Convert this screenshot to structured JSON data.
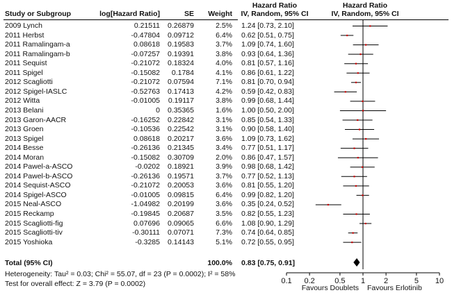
{
  "headers": {
    "study": "Study or Subgroup",
    "loghr": "log[Hazard Ratio]",
    "se": "SE",
    "weight": "Weight",
    "hr_title_left": "Hazard Ratio",
    "hr_method_left": "IV, Random, 95% CI",
    "hr_title_right": "Hazard Ratio",
    "hr_method_right": "IV, Random, 95% CI"
  },
  "studies": [
    {
      "name": "2009 Lynch",
      "loghr": "0.21511",
      "se": "0.26879",
      "weight": "2.5%",
      "ci_text": "1.24 [0.73, 2.10]"
    },
    {
      "name": "2011 Herbst",
      "loghr": "-0.47804",
      "se": "0.09712",
      "weight": "6.4%",
      "ci_text": "0.62 [0.51, 0.75]"
    },
    {
      "name": "2011 Ramalingam-a",
      "loghr": "0.08618",
      "se": "0.19583",
      "weight": "3.7%",
      "ci_text": "1.09 [0.74, 1.60]"
    },
    {
      "name": "2011 Ramalingam-b",
      "loghr": "-0.07257",
      "se": "0.19391",
      "weight": "3.8%",
      "ci_text": "0.93 [0.64, 1.36]"
    },
    {
      "name": "2011 Sequist",
      "loghr": "-0.21072",
      "se": "0.18324",
      "weight": "4.0%",
      "ci_text": "0.81 [0.57, 1.16]"
    },
    {
      "name": "2011 Spigel",
      "loghr": "-0.15082",
      "se": "0.1784",
      "weight": "4.1%",
      "ci_text": "0.86 [0.61, 1.22]"
    },
    {
      "name": "2012 Scagliotti",
      "loghr": "-0.21072",
      "se": "0.07594",
      "weight": "7.1%",
      "ci_text": "0.81 [0.70, 0.94]"
    },
    {
      "name": "2012 Spigel-IASLC",
      "loghr": "-0.52763",
      "se": "0.17413",
      "weight": "4.2%",
      "ci_text": "0.59 [0.42, 0.83]"
    },
    {
      "name": "2012 Witta",
      "loghr": "-0.01005",
      "se": "0.19117",
      "weight": "3.8%",
      "ci_text": "0.99 [0.68, 1.44]"
    },
    {
      "name": "2013 Belani",
      "loghr": "0",
      "se": "0.35365",
      "weight": "1.6%",
      "ci_text": "1.00 [0.50, 2.00]"
    },
    {
      "name": "2013 Garon-AACR",
      "loghr": "-0.16252",
      "se": "0.22842",
      "weight": "3.1%",
      "ci_text": "0.85 [0.54, 1.33]"
    },
    {
      "name": "2013 Groen",
      "loghr": "-0.10536",
      "se": "0.22542",
      "weight": "3.1%",
      "ci_text": "0.90 [0.58, 1.40]"
    },
    {
      "name": "2013 Spigel",
      "loghr": "0.08618",
      "se": "0.20217",
      "weight": "3.6%",
      "ci_text": "1.09 [0.73, 1.62]"
    },
    {
      "name": "2014 Besse",
      "loghr": "-0.26136",
      "se": "0.21345",
      "weight": "3.4%",
      "ci_text": "0.77 [0.51, 1.17]"
    },
    {
      "name": "2014 Moran",
      "loghr": "-0.15082",
      "se": "0.30709",
      "weight": "2.0%",
      "ci_text": "0.86 [0.47, 1.57]"
    },
    {
      "name": "2014 Pawel-a-ASCO",
      "loghr": "-0.0202",
      "se": "0.18921",
      "weight": "3.9%",
      "ci_text": "0.98 [0.68, 1.42]"
    },
    {
      "name": "2014 Pawel-b-ASCO",
      "loghr": "-0.26136",
      "se": "0.19571",
      "weight": "3.7%",
      "ci_text": "0.77 [0.52, 1.13]"
    },
    {
      "name": "2014 Sequist-ASCO",
      "loghr": "-0.21072",
      "se": "0.20053",
      "weight": "3.6%",
      "ci_text": "0.81 [0.55, 1.20]"
    },
    {
      "name": "2014 Spigel-ASCO",
      "loghr": "-0.01005",
      "se": "0.09815",
      "weight": "6.4%",
      "ci_text": "0.99 [0.82, 1.20]"
    },
    {
      "name": "2015 Neal-ASCO",
      "loghr": "-1.04982",
      "se": "0.20199",
      "weight": "3.6%",
      "ci_text": "0.35 [0.24, 0.52]"
    },
    {
      "name": "2015 Reckamp",
      "loghr": "-0.19845",
      "se": "0.20687",
      "weight": "3.5%",
      "ci_text": "0.82 [0.55, 1.23]"
    },
    {
      "name": "2015 Scagliotti-fig",
      "loghr": "0.07696",
      "se": "0.09065",
      "weight": "6.6%",
      "ci_text": "1.08 [0.90, 1.29]"
    },
    {
      "name": "2015 Scagliotti-tiv",
      "loghr": "-0.30111",
      "se": "0.07071",
      "weight": "7.3%",
      "ci_text": "0.74 [0.64, 0.85]"
    },
    {
      "name": "2015 Yoshioka",
      "loghr": "-0.3285",
      "se": "0.14143",
      "weight": "5.1%",
      "ci_text": "0.72 [0.55, 0.95]"
    }
  ],
  "total": {
    "label": "Total (95% CI)",
    "weight": "100.0%",
    "ci_text": "0.83 [0.75, 0.91]"
  },
  "heterogeneity": "Heterogeneity: Tau² = 0.03; Chi² = 55.07, df = 23 (P = 0.0002); I² = 58%",
  "overall_effect": "Test for overall effect: Z = 3.79 (P = 0.0002)",
  "axis": {
    "tick_labels": [
      "0.1",
      "0.2",
      "0.5",
      "1",
      "2",
      "5",
      "10"
    ],
    "favours_left": "Favours Doublets",
    "favours_right": "Favours Erlotinib"
  },
  "colors": {
    "marker": "#cc0000",
    "line": "#000000"
  },
  "chart_data": {
    "type": "forest",
    "title": "Hazard Ratio IV, Random, 95% CI",
    "xscale": "log",
    "xlim": [
      0.1,
      10
    ],
    "xticks": [
      0.1,
      0.2,
      0.5,
      1,
      2,
      5,
      10
    ],
    "xlabel_left": "Favours Doublets",
    "xlabel_right": "Favours Erlotinib",
    "rows": [
      {
        "study": "2009 Lynch",
        "hr": 1.24,
        "lo": 0.73,
        "hi": 2.1,
        "weight": 2.5
      },
      {
        "study": "2011 Herbst",
        "hr": 0.62,
        "lo": 0.51,
        "hi": 0.75,
        "weight": 6.4
      },
      {
        "study": "2011 Ramalingam-a",
        "hr": 1.09,
        "lo": 0.74,
        "hi": 1.6,
        "weight": 3.7
      },
      {
        "study": "2011 Ramalingam-b",
        "hr": 0.93,
        "lo": 0.64,
        "hi": 1.36,
        "weight": 3.8
      },
      {
        "study": "2011 Sequist",
        "hr": 0.81,
        "lo": 0.57,
        "hi": 1.16,
        "weight": 4.0
      },
      {
        "study": "2011 Spigel",
        "hr": 0.86,
        "lo": 0.61,
        "hi": 1.22,
        "weight": 4.1
      },
      {
        "study": "2012 Scagliotti",
        "hr": 0.81,
        "lo": 0.7,
        "hi": 0.94,
        "weight": 7.1
      },
      {
        "study": "2012 Spigel-IASLC",
        "hr": 0.59,
        "lo": 0.42,
        "hi": 0.83,
        "weight": 4.2
      },
      {
        "study": "2012 Witta",
        "hr": 0.99,
        "lo": 0.68,
        "hi": 1.44,
        "weight": 3.8
      },
      {
        "study": "2013 Belani",
        "hr": 1.0,
        "lo": 0.5,
        "hi": 2.0,
        "weight": 1.6
      },
      {
        "study": "2013 Garon-AACR",
        "hr": 0.85,
        "lo": 0.54,
        "hi": 1.33,
        "weight": 3.1
      },
      {
        "study": "2013 Groen",
        "hr": 0.9,
        "lo": 0.58,
        "hi": 1.4,
        "weight": 3.1
      },
      {
        "study": "2013 Spigel",
        "hr": 1.09,
        "lo": 0.73,
        "hi": 1.62,
        "weight": 3.6
      },
      {
        "study": "2014 Besse",
        "hr": 0.77,
        "lo": 0.51,
        "hi": 1.17,
        "weight": 3.4
      },
      {
        "study": "2014 Moran",
        "hr": 0.86,
        "lo": 0.47,
        "hi": 1.57,
        "weight": 2.0
      },
      {
        "study": "2014 Pawel-a-ASCO",
        "hr": 0.98,
        "lo": 0.68,
        "hi": 1.42,
        "weight": 3.9
      },
      {
        "study": "2014 Pawel-b-ASCO",
        "hr": 0.77,
        "lo": 0.52,
        "hi": 1.13,
        "weight": 3.7
      },
      {
        "study": "2014 Sequist-ASCO",
        "hr": 0.81,
        "lo": 0.55,
        "hi": 1.2,
        "weight": 3.6
      },
      {
        "study": "2014 Spigel-ASCO",
        "hr": 0.99,
        "lo": 0.82,
        "hi": 1.2,
        "weight": 6.4
      },
      {
        "study": "2015 Neal-ASCO",
        "hr": 0.35,
        "lo": 0.24,
        "hi": 0.52,
        "weight": 3.6
      },
      {
        "study": "2015 Reckamp",
        "hr": 0.82,
        "lo": 0.55,
        "hi": 1.23,
        "weight": 3.5
      },
      {
        "study": "2015 Scagliotti-fig",
        "hr": 1.08,
        "lo": 0.9,
        "hi": 1.29,
        "weight": 6.6
      },
      {
        "study": "2015 Scagliotti-tiv",
        "hr": 0.74,
        "lo": 0.64,
        "hi": 0.85,
        "weight": 7.3
      },
      {
        "study": "2015 Yoshioka",
        "hr": 0.72,
        "lo": 0.55,
        "hi": 0.95,
        "weight": 5.1
      }
    ],
    "total": {
      "hr": 0.83,
      "lo": 0.75,
      "hi": 0.91,
      "weight": 100.0
    }
  }
}
